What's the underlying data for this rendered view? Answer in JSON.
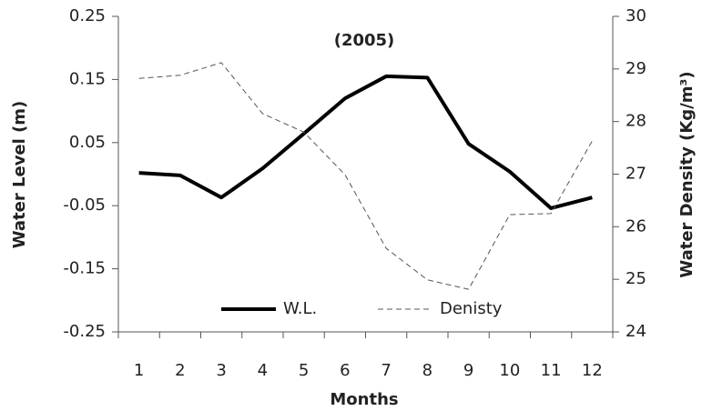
{
  "chart_data": {
    "type": "line",
    "title": "(2005)",
    "x_label": "Months",
    "y_label": "Water  Level (m)",
    "y2_label": "Water Density (Kg/m³)",
    "categories": [
      "1",
      "2",
      "3",
      "4",
      "5",
      "6",
      "7",
      "8",
      "9",
      "10",
      "11",
      "12"
    ],
    "series": [
      {
        "name": "W.L.",
        "color": "#000000",
        "values": [
          0.002,
          -0.002,
          -0.037,
          0.009,
          0.064,
          0.12,
          0.155,
          0.153,
          0.048,
          0.004,
          -0.054,
          -0.037
        ]
      },
      {
        "name": "Denisty",
        "color": "#555555",
        "axis": "y2",
        "dashed": true,
        "values": [
          28.82,
          28.88,
          29.12,
          28.15,
          27.8,
          26.99,
          25.59,
          24.99,
          24.81,
          26.23,
          26.25,
          27.63
        ]
      }
    ],
    "ylim": [
      -0.25,
      0.25
    ],
    "yticks": [
      -0.25,
      -0.15,
      -0.05,
      0.05,
      0.15,
      0.25
    ],
    "y2lim": [
      24,
      30
    ],
    "y2ticks": [
      24,
      25,
      26,
      27,
      28,
      29,
      30
    ],
    "grid": false,
    "legend": "bottom"
  }
}
